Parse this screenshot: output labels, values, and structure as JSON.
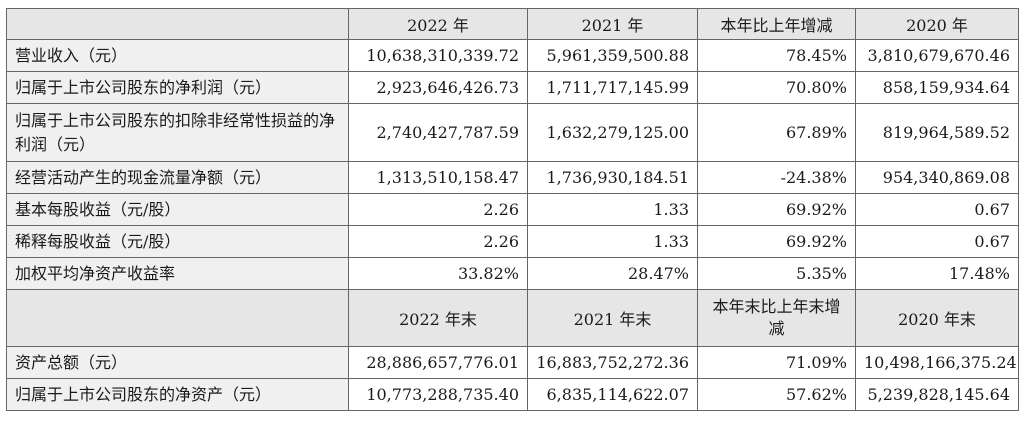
{
  "header": [
    "",
    "2022 年",
    "2021 年",
    "本年比上年增减",
    "2020 年"
  ],
  "rows": [
    {
      "label": "营业收入（元）",
      "v": [
        "10,638,310,339.72",
        "5,961,359,500.88",
        "78.45%",
        "3,810,679,670.46"
      ]
    },
    {
      "label": "归属于上市公司股东的净利润（元）",
      "v": [
        "2,923,646,426.73",
        "1,711,717,145.99",
        "70.80%",
        "858,159,934.64"
      ]
    },
    {
      "label": "归属于上市公司股东的扣除非经常性损益的净利润（元）",
      "v": [
        "2,740,427,787.59",
        "1,632,279,125.00",
        "67.89%",
        "819,964,589.52"
      ]
    },
    {
      "label": "经营活动产生的现金流量净额（元）",
      "v": [
        "1,313,510,158.47",
        "1,736,930,184.51",
        "-24.38%",
        "954,340,869.08"
      ]
    },
    {
      "label": "基本每股收益（元/股）",
      "v": [
        "2.26",
        "1.33",
        "69.92%",
        "0.67"
      ]
    },
    {
      "label": "稀释每股收益（元/股）",
      "v": [
        "2.26",
        "1.33",
        "69.92%",
        "0.67"
      ]
    },
    {
      "label": "加权平均净资产收益率",
      "v": [
        "33.82%",
        "28.47%",
        "5.35%",
        "17.48%"
      ]
    }
  ],
  "subheader": [
    "",
    "2022 年末",
    "2021 年末",
    "本年末比上年末增减",
    "2020 年末"
  ],
  "rows2": [
    {
      "label": "资产总额（元）",
      "v": [
        "28,886,657,776.01",
        "16,883,752,272.36",
        "71.09%",
        "10,498,166,375.24"
      ]
    },
    {
      "label": "归属于上市公司股东的净资产（元）",
      "v": [
        "10,773,288,735.40",
        "6,835,114,622.07",
        "57.62%",
        "5,239,828,145.64"
      ]
    }
  ]
}
